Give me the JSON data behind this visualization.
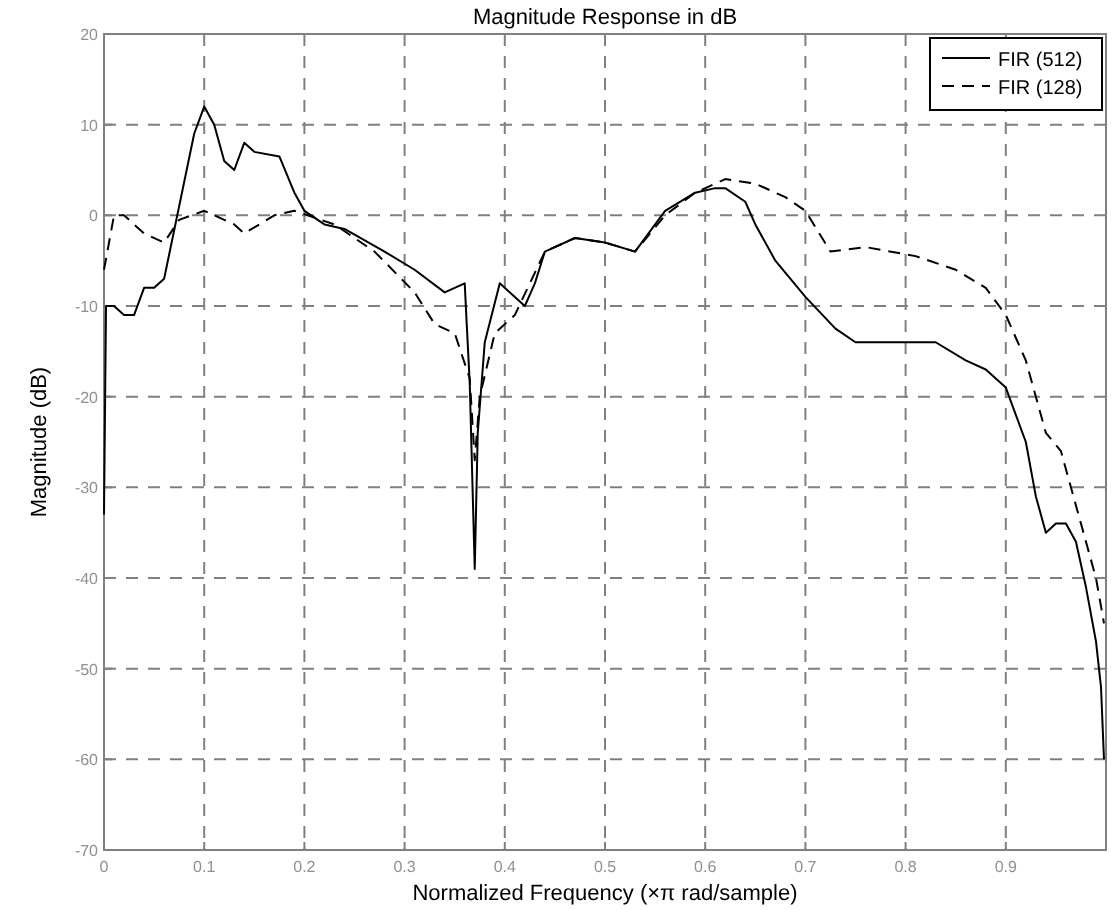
{
  "chart_data": {
    "type": "line",
    "title": "Magnitude Response in dB",
    "xlabel": "Normalized Frequency  (×π rad/sample)",
    "ylabel": "Magnitude (dB)",
    "xlim": [
      0,
      1
    ],
    "xticks": [
      0,
      0.1,
      0.2,
      0.3,
      0.4,
      0.5,
      0.6,
      0.7,
      0.8,
      0.9
    ],
    "ylim": [
      -70,
      20
    ],
    "yticks": [
      -70,
      -60,
      -50,
      -40,
      -30,
      -20,
      -10,
      0,
      10,
      20
    ],
    "grid": true,
    "legend": "top right",
    "series": [
      {
        "name": "FIR (512)",
        "color": "#000000",
        "line_style": "solid",
        "x": [
          0,
          0.002,
          0.01,
          0.02,
          0.03,
          0.04,
          0.05,
          0.06,
          0.075,
          0.09,
          0.1,
          0.11,
          0.12,
          0.13,
          0.14,
          0.15,
          0.175,
          0.19,
          0.2,
          0.22,
          0.24,
          0.28,
          0.31,
          0.34,
          0.35,
          0.36,
          0.362,
          0.365,
          0.37,
          0.373,
          0.38,
          0.395,
          0.41,
          0.42,
          0.43,
          0.44,
          0.47,
          0.5,
          0.53,
          0.56,
          0.59,
          0.61,
          0.62,
          0.64,
          0.65,
          0.67,
          0.7,
          0.73,
          0.75,
          0.78,
          0.8,
          0.83,
          0.86,
          0.88,
          0.9,
          0.91,
          0.92,
          0.93,
          0.94,
          0.95,
          0.96,
          0.97,
          0.98,
          0.99,
          0.995,
          0.998
        ],
        "values": [
          -33,
          -10,
          -10,
          -11,
          -11,
          -8,
          -8,
          -7,
          1,
          9,
          12,
          10,
          6,
          5,
          8,
          7,
          6.5,
          2.5,
          0.5,
          -1,
          -1.5,
          -4,
          -6,
          -8.5,
          -8,
          -7.5,
          -12,
          -18.5,
          -39,
          -24,
          -14,
          -7.5,
          -9,
          -10,
          -7.5,
          -4,
          -2.5,
          -3,
          -4,
          0.5,
          2.5,
          3,
          3,
          1.5,
          -1,
          -5,
          -9,
          -12.5,
          -14,
          -14,
          -14,
          -14,
          -16,
          -17,
          -19,
          -22,
          -25,
          -31,
          -35,
          -34,
          -34,
          -36,
          -41,
          -47,
          -52,
          -60
        ]
      },
      {
        "name": "FIR (128)",
        "color": "#000000",
        "line_style": "dashed",
        "x": [
          0,
          0.01,
          0.02,
          0.04,
          0.06,
          0.075,
          0.1,
          0.13,
          0.14,
          0.17,
          0.19,
          0.23,
          0.27,
          0.31,
          0.33,
          0.35,
          0.365,
          0.37,
          0.375,
          0.39,
          0.41,
          0.44,
          0.47,
          0.5,
          0.53,
          0.56,
          0.59,
          0.62,
          0.65,
          0.68,
          0.7,
          0.725,
          0.76,
          0.81,
          0.85,
          0.88,
          0.9,
          0.92,
          0.94,
          0.955,
          0.975,
          0.99,
          0.998
        ],
        "values": [
          -6,
          0,
          0,
          -2,
          -3,
          -0.5,
          0.5,
          -1,
          -2,
          0,
          0.5,
          -1,
          -4,
          -8.5,
          -12,
          -13,
          -18,
          -27,
          -20,
          -13,
          -11,
          -4,
          -2.5,
          -3,
          -4,
          0,
          2.5,
          4,
          3.5,
          2,
          0.5,
          -4,
          -3.5,
          -4.5,
          -6,
          -8,
          -11,
          -16,
          -24,
          -26,
          -34,
          -40,
          -45
        ]
      }
    ]
  }
}
